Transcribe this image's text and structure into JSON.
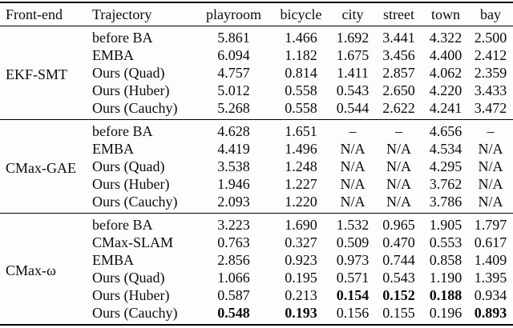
{
  "table": {
    "columns": [
      "Front-end",
      "Trajectory",
      "playroom",
      "bicycle",
      "city",
      "street",
      "town",
      "bay"
    ],
    "groups": [
      {
        "frontend": "EKF-SMT",
        "rows": [
          {
            "label": "before BA",
            "values": [
              "5.861",
              "1.466",
              "1.692",
              "3.441",
              "4.322",
              "2.500"
            ],
            "bold": []
          },
          {
            "label": "EMBA",
            "values": [
              "6.094",
              "1.182",
              "1.675",
              "3.456",
              "4.400",
              "2.412"
            ],
            "bold": []
          },
          {
            "label": "Ours (Quad)",
            "values": [
              "4.757",
              "0.814",
              "1.411",
              "2.857",
              "4.062",
              "2.359"
            ],
            "bold": []
          },
          {
            "label": "Ours (Huber)",
            "values": [
              "5.012",
              "0.558",
              "0.543",
              "2.650",
              "4.220",
              "3.433"
            ],
            "bold": []
          },
          {
            "label": "Ours (Cauchy)",
            "values": [
              "5.268",
              "0.558",
              "0.544",
              "2.622",
              "4.241",
              "3.472"
            ],
            "bold": []
          }
        ]
      },
      {
        "frontend": "CMax-GAE",
        "rows": [
          {
            "label": "before BA",
            "values": [
              "4.628",
              "1.651",
              "–",
              "–",
              "4.656",
              "–"
            ],
            "bold": []
          },
          {
            "label": "EMBA",
            "values": [
              "4.419",
              "1.496",
              "N/A",
              "N/A",
              "4.534",
              "N/A"
            ],
            "bold": []
          },
          {
            "label": "Ours (Quad)",
            "values": [
              "3.538",
              "1.248",
              "N/A",
              "N/A",
              "4.295",
              "N/A"
            ],
            "bold": []
          },
          {
            "label": "Ours (Huber)",
            "values": [
              "1.946",
              "1.227",
              "N/A",
              "N/A",
              "3.762",
              "N/A"
            ],
            "bold": []
          },
          {
            "label": "Ours (Cauchy)",
            "values": [
              "2.093",
              "1.220",
              "N/A",
              "N/A",
              "3.786",
              "N/A"
            ],
            "bold": []
          }
        ]
      },
      {
        "frontend": "CMax-ω",
        "rows": [
          {
            "label": "before BA",
            "values": [
              "3.223",
              "1.690",
              "1.532",
              "0.965",
              "1.905",
              "1.797"
            ],
            "bold": []
          },
          {
            "label": "CMax-SLAM",
            "values": [
              "0.763",
              "0.327",
              "0.509",
              "0.470",
              "0.553",
              "0.617"
            ],
            "bold": []
          },
          {
            "label": "EMBA",
            "values": [
              "2.856",
              "0.923",
              "0.973",
              "0.744",
              "0.858",
              "1.409"
            ],
            "bold": []
          },
          {
            "label": "Ours (Quad)",
            "values": [
              "1.066",
              "0.195",
              "0.571",
              "0.543",
              "1.190",
              "1.395"
            ],
            "bold": []
          },
          {
            "label": "Ours (Huber)",
            "values": [
              "0.587",
              "0.213",
              "0.154",
              "0.152",
              "0.188",
              "0.934"
            ],
            "bold": [
              2,
              3,
              4
            ]
          },
          {
            "label": "Ours (Cauchy)",
            "values": [
              "0.548",
              "0.193",
              "0.156",
              "0.155",
              "0.196",
              "0.893"
            ],
            "bold": [
              0,
              1,
              5
            ]
          }
        ]
      }
    ]
  }
}
